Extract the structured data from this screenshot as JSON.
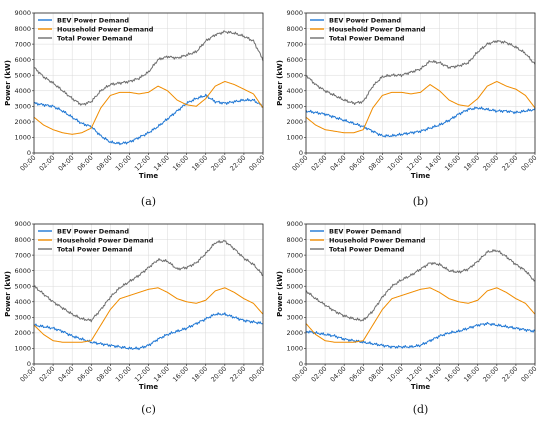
{
  "chart_data": [
    {
      "type": "line",
      "caption": "(a)",
      "xlabel": "Time",
      "ylabel": "Power (kW)",
      "ylim": [
        0,
        9000
      ],
      "yticks": [
        0,
        1000,
        2000,
        3000,
        4000,
        5000,
        6000,
        7000,
        8000,
        9000
      ],
      "xticklabels": [
        "00:00",
        "02:00",
        "04:00",
        "06:00",
        "08:00",
        "10:00",
        "12:00",
        "14:00",
        "16:00",
        "18:00",
        "20:00",
        "22:00",
        "00:00"
      ],
      "x": [
        0,
        1,
        2,
        3,
        4,
        5,
        6,
        7,
        8,
        9,
        10,
        11,
        12,
        13,
        14,
        15,
        16,
        17,
        18,
        19,
        20,
        21,
        22,
        23,
        24
      ],
      "grid": true,
      "legend": "top-left",
      "series": [
        {
          "name": "BEV Power Demand",
          "color": "#1f77d4",
          "values": [
            3200,
            3100,
            3000,
            2700,
            2300,
            1900,
            1700,
            1100,
            700,
            600,
            700,
            1000,
            1300,
            1700,
            2200,
            2700,
            3200,
            3500,
            3700,
            3300,
            3200,
            3300,
            3400,
            3400,
            3000
          ]
        },
        {
          "name": "Household Power Demand",
          "color": "#f08c00",
          "values": [
            2300,
            1800,
            1500,
            1300,
            1200,
            1300,
            1600,
            2900,
            3700,
            3900,
            3900,
            3800,
            3900,
            4300,
            4000,
            3400,
            3100,
            3000,
            3500,
            4300,
            4600,
            4400,
            4100,
            3800,
            2900
          ]
        },
        {
          "name": "Total Power Demand",
          "color": "#6e6e6e",
          "values": [
            5500,
            4900,
            4500,
            4000,
            3500,
            3100,
            3300,
            4000,
            4400,
            4500,
            4600,
            4800,
            5200,
            6000,
            6200,
            6100,
            6300,
            6500,
            7200,
            7600,
            7800,
            7700,
            7500,
            7200,
            6000
          ]
        }
      ]
    },
    {
      "type": "line",
      "caption": "(b)",
      "xlabel": "Time",
      "ylabel": "Power (kW)",
      "ylim": [
        0,
        9000
      ],
      "yticks": [
        0,
        1000,
        2000,
        3000,
        4000,
        5000,
        6000,
        7000,
        8000,
        9000
      ],
      "xticklabels": [
        "00:00",
        "02:00",
        "04:00",
        "06:00",
        "08:00",
        "10:00",
        "12:00",
        "14:00",
        "16:00",
        "18:00",
        "20:00",
        "22:00",
        "00:00"
      ],
      "x": [
        0,
        1,
        2,
        3,
        4,
        5,
        6,
        7,
        8,
        9,
        10,
        11,
        12,
        13,
        14,
        15,
        16,
        17,
        18,
        19,
        20,
        21,
        22,
        23,
        24
      ],
      "grid": true,
      "legend": "top-left",
      "series": [
        {
          "name": "BEV Power Demand",
          "color": "#1f77d4",
          "values": [
            2700,
            2600,
            2500,
            2300,
            2100,
            1900,
            1700,
            1400,
            1100,
            1100,
            1200,
            1300,
            1400,
            1600,
            1800,
            2100,
            2500,
            2800,
            2900,
            2800,
            2700,
            2700,
            2600,
            2700,
            2800
          ]
        },
        {
          "name": "Household Power Demand",
          "color": "#f08c00",
          "values": [
            2300,
            1800,
            1500,
            1400,
            1300,
            1300,
            1500,
            2900,
            3700,
            3900,
            3900,
            3800,
            3900,
            4400,
            4000,
            3400,
            3100,
            3000,
            3500,
            4300,
            4600,
            4300,
            4100,
            3700,
            2900
          ]
        },
        {
          "name": "Total Power Demand",
          "color": "#6e6e6e",
          "values": [
            5000,
            4400,
            4000,
            3700,
            3400,
            3200,
            3300,
            4300,
            4900,
            5000,
            5000,
            5200,
            5400,
            5900,
            5800,
            5500,
            5600,
            5800,
            6500,
            7000,
            7200,
            7100,
            6800,
            6400,
            5700
          ]
        }
      ]
    },
    {
      "type": "line",
      "caption": "(c)",
      "xlabel": "Time",
      "ylabel": "Power (kW)",
      "ylim": [
        0,
        9000
      ],
      "yticks": [
        0,
        1000,
        2000,
        3000,
        4000,
        5000,
        6000,
        7000,
        8000,
        9000
      ],
      "xticklabels": [
        "00:00",
        "02:00",
        "04:00",
        "06:00",
        "08:00",
        "10:00",
        "12:00",
        "14:00",
        "16:00",
        "18:00",
        "20:00",
        "22:00",
        "00:00"
      ],
      "x": [
        0,
        1,
        2,
        3,
        4,
        5,
        6,
        7,
        8,
        9,
        10,
        11,
        12,
        13,
        14,
        15,
        16,
        17,
        18,
        19,
        20,
        21,
        22,
        23,
        24
      ],
      "grid": true,
      "legend": "top-left",
      "series": [
        {
          "name": "BEV Power Demand",
          "color": "#1f77d4",
          "values": [
            2500,
            2400,
            2300,
            2100,
            1800,
            1600,
            1400,
            1300,
            1200,
            1100,
            1000,
            1000,
            1200,
            1600,
            1900,
            2100,
            2300,
            2600,
            2900,
            3200,
            3200,
            3000,
            2800,
            2700,
            2600
          ]
        },
        {
          "name": "Household Power Demand",
          "color": "#f08c00",
          "values": [
            2500,
            1900,
            1500,
            1400,
            1400,
            1400,
            1500,
            2500,
            3500,
            4200,
            4400,
            4600,
            4800,
            4900,
            4600,
            4200,
            4000,
            3900,
            4100,
            4700,
            4900,
            4600,
            4200,
            3900,
            3200
          ]
        },
        {
          "name": "Total Power Demand",
          "color": "#6e6e6e",
          "values": [
            5000,
            4500,
            4000,
            3600,
            3200,
            2900,
            2800,
            3500,
            4300,
            4900,
            5300,
            5700,
            6200,
            6700,
            6600,
            6100,
            6200,
            6500,
            7100,
            7800,
            7900,
            7400,
            6800,
            6400,
            5700
          ]
        }
      ]
    },
    {
      "type": "line",
      "caption": "(d)",
      "xlabel": "Time",
      "ylabel": "Power (kW)",
      "ylim": [
        0,
        9000
      ],
      "yticks": [
        0,
        1000,
        2000,
        3000,
        4000,
        5000,
        6000,
        7000,
        8000,
        9000
      ],
      "xticklabels": [
        "00:00",
        "02:00",
        "04:00",
        "06:00",
        "08:00",
        "10:00",
        "12:00",
        "14:00",
        "16:00",
        "18:00",
        "20:00",
        "22:00",
        "00:00"
      ],
      "x": [
        0,
        1,
        2,
        3,
        4,
        5,
        6,
        7,
        8,
        9,
        10,
        11,
        12,
        13,
        14,
        15,
        16,
        17,
        18,
        19,
        20,
        21,
        22,
        23,
        24
      ],
      "grid": true,
      "legend": "top-left",
      "series": [
        {
          "name": "BEV Power Demand",
          "color": "#1f77d4",
          "values": [
            2100,
            2000,
            1900,
            1800,
            1600,
            1500,
            1400,
            1300,
            1200,
            1100,
            1100,
            1100,
            1200,
            1500,
            1800,
            2000,
            2100,
            2300,
            2500,
            2600,
            2500,
            2400,
            2300,
            2200,
            2100
          ]
        },
        {
          "name": "Household Power Demand",
          "color": "#f08c00",
          "values": [
            2600,
            1900,
            1500,
            1400,
            1400,
            1400,
            1500,
            2500,
            3500,
            4200,
            4400,
            4600,
            4800,
            4900,
            4600,
            4200,
            4000,
            3900,
            4100,
            4700,
            4900,
            4600,
            4200,
            3900,
            3200
          ]
        },
        {
          "name": "Total Power Demand",
          "color": "#6e6e6e",
          "values": [
            4700,
            4200,
            3800,
            3400,
            3100,
            2900,
            2800,
            3400,
            4300,
            5000,
            5400,
            5700,
            6100,
            6500,
            6400,
            6000,
            5900,
            6100,
            6600,
            7200,
            7300,
            6900,
            6400,
            6000,
            5300
          ]
        }
      ]
    }
  ]
}
